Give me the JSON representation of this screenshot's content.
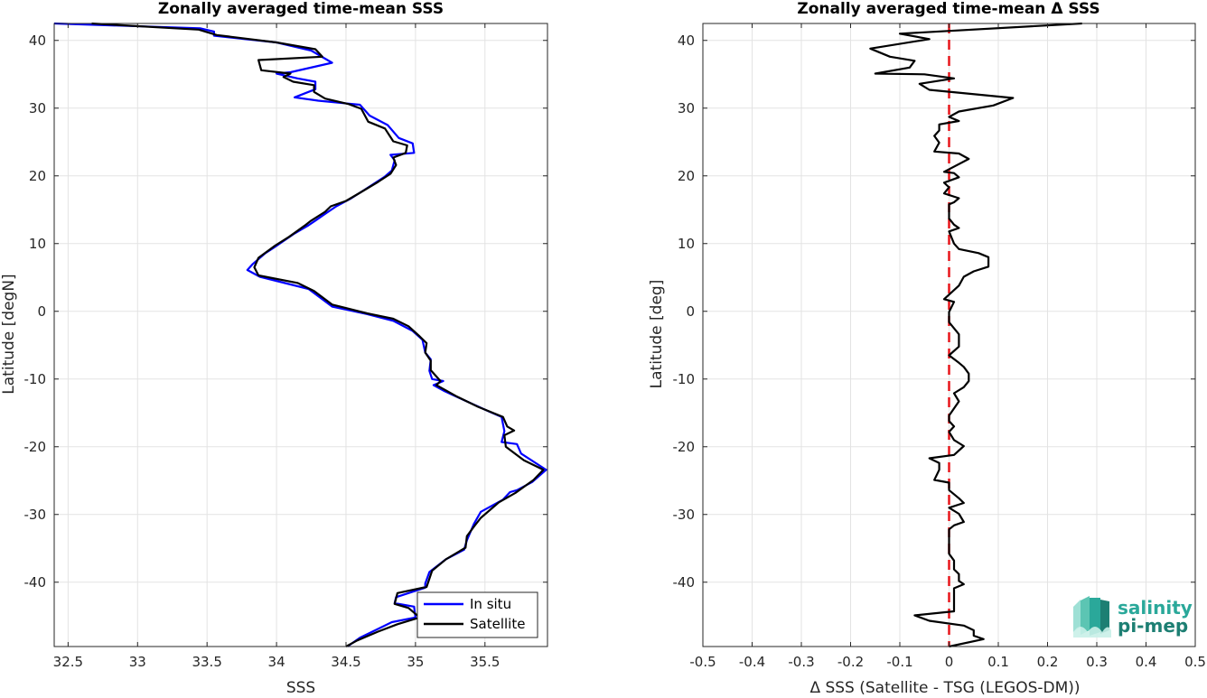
{
  "chart_data": [
    {
      "type": "line",
      "title": "Zonally averaged time-mean SSS",
      "xlabel": "SSS",
      "ylabel": "Latitude [degN]",
      "xlim": [
        32.4,
        35.95
      ],
      "ylim": [
        -49.5,
        42.5
      ],
      "xticks": [
        "32.5",
        "33",
        "33.5",
        "34",
        "34.5",
        "35",
        "35.5"
      ],
      "xtick_values": [
        32.5,
        33,
        33.5,
        34,
        34.5,
        35,
        35.5
      ],
      "yticks": [
        "-40",
        "-30",
        "-20",
        "-10",
        "0",
        "10",
        "20",
        "30",
        "40"
      ],
      "ytick_values": [
        -40,
        -30,
        -20,
        -10,
        0,
        10,
        20,
        30,
        40
      ],
      "grid": true,
      "legend_position": "bottom-right",
      "series": [
        {
          "name": "In situ",
          "color": "#0000ff",
          "points": [
            [
              32.4,
              42.5
            ],
            [
              33.45,
              41.8
            ],
            [
              33.55,
              41.3
            ],
            [
              33.55,
              40.7
            ],
            [
              34.0,
              39.7
            ],
            [
              34.25,
              38.5
            ],
            [
              34.4,
              36.7
            ],
            [
              34.1,
              35.3
            ],
            [
              34.0,
              35.1
            ],
            [
              34.15,
              34.4
            ],
            [
              34.28,
              33.9
            ],
            [
              34.28,
              32.8
            ],
            [
              34.13,
              31.6
            ],
            [
              34.3,
              31.1
            ],
            [
              34.6,
              30.5
            ],
            [
              34.67,
              28.9
            ],
            [
              34.8,
              27.5
            ],
            [
              34.88,
              25.6
            ],
            [
              34.98,
              24.8
            ],
            [
              34.99,
              23.4
            ],
            [
              34.82,
              23.1
            ],
            [
              34.85,
              22.3
            ],
            [
              34.83,
              20.8
            ],
            [
              34.78,
              19.9
            ],
            [
              34.63,
              17.9
            ],
            [
              34.53,
              16.6
            ],
            [
              34.43,
              15.5
            ],
            [
              34.35,
              14.4
            ],
            [
              34.28,
              13.4
            ],
            [
              34.23,
              12.7
            ],
            [
              34.13,
              11.5
            ],
            [
              33.98,
              9.4
            ],
            [
              33.92,
              8.6
            ],
            [
              33.83,
              7.0
            ],
            [
              33.79,
              6.1
            ],
            [
              33.88,
              5.1
            ],
            [
              34.23,
              3.3
            ],
            [
              34.4,
              0.7
            ],
            [
              34.65,
              -0.4
            ],
            [
              34.84,
              -1.4
            ],
            [
              34.98,
              -2.9
            ],
            [
              35.05,
              -4.2
            ],
            [
              35.07,
              -6.1
            ],
            [
              35.11,
              -7.1
            ],
            [
              35.1,
              -8.8
            ],
            [
              35.12,
              -10.0
            ],
            [
              35.2,
              -10.3
            ],
            [
              35.13,
              -10.9
            ],
            [
              35.21,
              -11.8
            ],
            [
              35.38,
              -13.4
            ],
            [
              35.53,
              -14.8
            ],
            [
              35.62,
              -15.6
            ],
            [
              35.64,
              -17.7
            ],
            [
              35.62,
              -19.3
            ],
            [
              35.73,
              -19.6
            ],
            [
              35.76,
              -21.0
            ],
            [
              35.94,
              -23.4
            ],
            [
              35.84,
              -25.2
            ],
            [
              35.73,
              -26.4
            ],
            [
              35.68,
              -26.7
            ],
            [
              35.63,
              -27.8
            ],
            [
              35.47,
              -29.6
            ],
            [
              35.42,
              -31.4
            ],
            [
              35.37,
              -33.8
            ],
            [
              35.35,
              -35.2
            ],
            [
              35.22,
              -36.6
            ],
            [
              35.1,
              -38.5
            ],
            [
              35.07,
              -40.2
            ],
            [
              35.07,
              -40.8
            ],
            [
              34.86,
              -42.2
            ],
            [
              34.85,
              -43.1
            ],
            [
              34.99,
              -43.6
            ],
            [
              35.0,
              -45.2
            ],
            [
              34.83,
              -45.9
            ],
            [
              34.73,
              -46.9
            ],
            [
              34.6,
              -48.2
            ],
            [
              34.51,
              -49.5
            ]
          ]
        },
        {
          "name": "Satellite",
          "color": "#000000",
          "points": [
            [
              32.67,
              42.5
            ],
            [
              33.44,
              41.6
            ],
            [
              33.57,
              40.8
            ],
            [
              34.0,
              39.7
            ],
            [
              34.28,
              38.7
            ],
            [
              34.33,
              37.6
            ],
            [
              33.87,
              37.1
            ],
            [
              33.89,
              35.6
            ],
            [
              34.1,
              35.1
            ],
            [
              34.05,
              34.6
            ],
            [
              34.12,
              33.9
            ],
            [
              34.27,
              33.4
            ],
            [
              34.27,
              32.4
            ],
            [
              34.35,
              31.4
            ],
            [
              34.52,
              30.6
            ],
            [
              34.61,
              29.9
            ],
            [
              34.66,
              28.0
            ],
            [
              34.78,
              27.0
            ],
            [
              34.84,
              25.1
            ],
            [
              34.94,
              24.5
            ],
            [
              34.93,
              23.4
            ],
            [
              34.84,
              22.7
            ],
            [
              34.86,
              21.6
            ],
            [
              34.82,
              20.3
            ],
            [
              34.73,
              19.1
            ],
            [
              34.6,
              17.5
            ],
            [
              34.5,
              16.3
            ],
            [
              34.39,
              15.5
            ],
            [
              34.35,
              14.7
            ],
            [
              34.25,
              13.4
            ],
            [
              34.2,
              12.6
            ],
            [
              34.09,
              11.0
            ],
            [
              33.99,
              9.7
            ],
            [
              33.87,
              7.9
            ],
            [
              33.84,
              6.5
            ],
            [
              33.87,
              5.3
            ],
            [
              34.15,
              4.2
            ],
            [
              34.27,
              3.0
            ],
            [
              34.4,
              1.0
            ],
            [
              34.65,
              -0.3
            ],
            [
              34.84,
              -1.1
            ],
            [
              34.95,
              -2.2
            ],
            [
              35.03,
              -3.7
            ],
            [
              35.08,
              -4.7
            ],
            [
              35.07,
              -6.1
            ],
            [
              35.11,
              -7.3
            ],
            [
              35.11,
              -8.7
            ],
            [
              35.18,
              -10.3
            ],
            [
              35.15,
              -10.9
            ],
            [
              35.3,
              -12.6
            ],
            [
              35.45,
              -14.1
            ],
            [
              35.63,
              -15.6
            ],
            [
              35.66,
              -17.0
            ],
            [
              35.71,
              -17.6
            ],
            [
              35.64,
              -18.3
            ],
            [
              35.65,
              -20.0
            ],
            [
              35.78,
              -22.0
            ],
            [
              35.92,
              -23.4
            ],
            [
              35.85,
              -24.9
            ],
            [
              35.72,
              -26.8
            ],
            [
              35.6,
              -28.2
            ],
            [
              35.47,
              -30.5
            ],
            [
              35.42,
              -31.8
            ],
            [
              35.37,
              -33.2
            ],
            [
              35.36,
              -34.9
            ],
            [
              35.22,
              -36.6
            ],
            [
              35.12,
              -38.3
            ],
            [
              35.08,
              -40.7
            ],
            [
              34.87,
              -41.6
            ],
            [
              34.85,
              -43.2
            ],
            [
              34.95,
              -43.8
            ],
            [
              35.03,
              -45.2
            ],
            [
              34.87,
              -46.2
            ],
            [
              34.73,
              -47.3
            ],
            [
              34.58,
              -48.6
            ],
            [
              34.5,
              -49.5
            ]
          ]
        }
      ]
    },
    {
      "type": "line",
      "title": "Zonally averaged time-mean Δ SSS",
      "xlabel": "Δ SSS (Satellite - TSG (LEGOS-DM))",
      "ylabel": "Latitude [deg]",
      "xlim": [
        -0.5,
        0.5
      ],
      "ylim": [
        -49.5,
        42.5
      ],
      "xticks": [
        "-0.5",
        "-0.4",
        "-0.3",
        "-0.2",
        "-0.1",
        "0",
        "0.1",
        "0.2",
        "0.3",
        "0.4",
        "0.5"
      ],
      "xtick_values": [
        -0.5,
        -0.4,
        -0.3,
        -0.2,
        -0.1,
        0,
        0.1,
        0.2,
        0.3,
        0.4,
        0.5
      ],
      "yticks": [
        "-40",
        "-30",
        "-20",
        "-10",
        "0",
        "10",
        "20",
        "30",
        "40"
      ],
      "ytick_values": [
        -40,
        -30,
        -20,
        -10,
        0,
        10,
        20,
        30,
        40
      ],
      "grid": true,
      "reference_line": {
        "x": 0,
        "color": "#e8161b",
        "style": "dashed"
      },
      "series": [
        {
          "name": "",
          "color": "#000000",
          "points": [
            [
              0.27,
              42.5
            ],
            [
              -0.1,
              41.0
            ],
            [
              -0.04,
              40.2
            ],
            [
              -0.16,
              38.8
            ],
            [
              -0.12,
              37.6
            ],
            [
              -0.07,
              37.0
            ],
            [
              -0.08,
              36.0
            ],
            [
              -0.15,
              35.1
            ],
            [
              -0.05,
              35.0
            ],
            [
              0.01,
              34.4
            ],
            [
              -0.06,
              33.6
            ],
            [
              -0.04,
              32.7
            ],
            [
              0.13,
              31.5
            ],
            [
              0.09,
              30.4
            ],
            [
              0.02,
              29.5
            ],
            [
              0.0,
              28.7
            ],
            [
              0.02,
              28.1
            ],
            [
              -0.02,
              27.6
            ],
            [
              -0.02,
              26.7
            ],
            [
              -0.03,
              25.9
            ],
            [
              -0.02,
              24.9
            ],
            [
              -0.03,
              23.6
            ],
            [
              0.02,
              23.3
            ],
            [
              0.04,
              22.5
            ],
            [
              -0.01,
              20.6
            ],
            [
              0.01,
              20.4
            ],
            [
              0.02,
              19.8
            ],
            [
              -0.01,
              19.0
            ],
            [
              0.0,
              18.3
            ],
            [
              -0.01,
              17.4
            ],
            [
              0.02,
              16.7
            ],
            [
              0.01,
              16.1
            ],
            [
              0.0,
              15.8
            ],
            [
              0.0,
              13.7
            ],
            [
              0.01,
              12.8
            ],
            [
              0.02,
              12.3
            ],
            [
              0.0,
              11.8
            ],
            [
              0.01,
              10.0
            ],
            [
              0.02,
              9.2
            ],
            [
              0.06,
              8.6
            ],
            [
              0.08,
              8.0
            ],
            [
              0.08,
              6.6
            ],
            [
              0.05,
              5.9
            ],
            [
              0.03,
              5.1
            ],
            [
              0.02,
              3.8
            ],
            [
              -0.01,
              1.8
            ],
            [
              0.01,
              1.4
            ],
            [
              0.0,
              -0.1
            ],
            [
              0.0,
              -1.6
            ],
            [
              0.02,
              -3.4
            ],
            [
              0.02,
              -5.2
            ],
            [
              0.0,
              -6.5
            ],
            [
              0.02,
              -7.6
            ],
            [
              0.03,
              -8.2
            ],
            [
              0.04,
              -9.2
            ],
            [
              0.04,
              -10.3
            ],
            [
              0.03,
              -11.2
            ],
            [
              0.01,
              -12.1
            ],
            [
              0.02,
              -13.3
            ],
            [
              0.0,
              -15.4
            ],
            [
              0.0,
              -16.2
            ],
            [
              0.01,
              -17.0
            ],
            [
              0.0,
              -17.8
            ],
            [
              0.01,
              -19.0
            ],
            [
              0.03,
              -19.9
            ],
            [
              0.01,
              -21.2
            ],
            [
              -0.04,
              -21.7
            ],
            [
              -0.02,
              -22.4
            ],
            [
              -0.02,
              -23.4
            ],
            [
              -0.03,
              -24.9
            ],
            [
              0.0,
              -25.3
            ],
            [
              0.0,
              -26.4
            ],
            [
              0.02,
              -27.6
            ],
            [
              0.03,
              -28.3
            ],
            [
              0.0,
              -29.0
            ],
            [
              0.02,
              -29.9
            ],
            [
              0.03,
              -31.1
            ],
            [
              0.01,
              -31.6
            ],
            [
              0.0,
              -32.2
            ],
            [
              0.0,
              -34.6
            ],
            [
              0.0,
              -35.8
            ],
            [
              0.01,
              -36.8
            ],
            [
              0.01,
              -38.1
            ],
            [
              0.02,
              -38.8
            ],
            [
              0.02,
              -39.8
            ],
            [
              0.03,
              -40.3
            ],
            [
              0.01,
              -40.9
            ],
            [
              0.01,
              -42.5
            ],
            [
              0.01,
              -43.5
            ],
            [
              0.01,
              -44.3
            ],
            [
              -0.07,
              -44.9
            ],
            [
              -0.04,
              -45.7
            ],
            [
              0.03,
              -46.4
            ],
            [
              0.05,
              -47.1
            ],
            [
              0.05,
              -47.9
            ],
            [
              0.07,
              -48.4
            ],
            [
              0.0,
              -49.5
            ]
          ]
        }
      ]
    }
  ],
  "legend": {
    "items": [
      "In situ",
      "Satellite"
    ]
  },
  "logo": {
    "line1": "salinity",
    "line2": "pi-mep"
  }
}
